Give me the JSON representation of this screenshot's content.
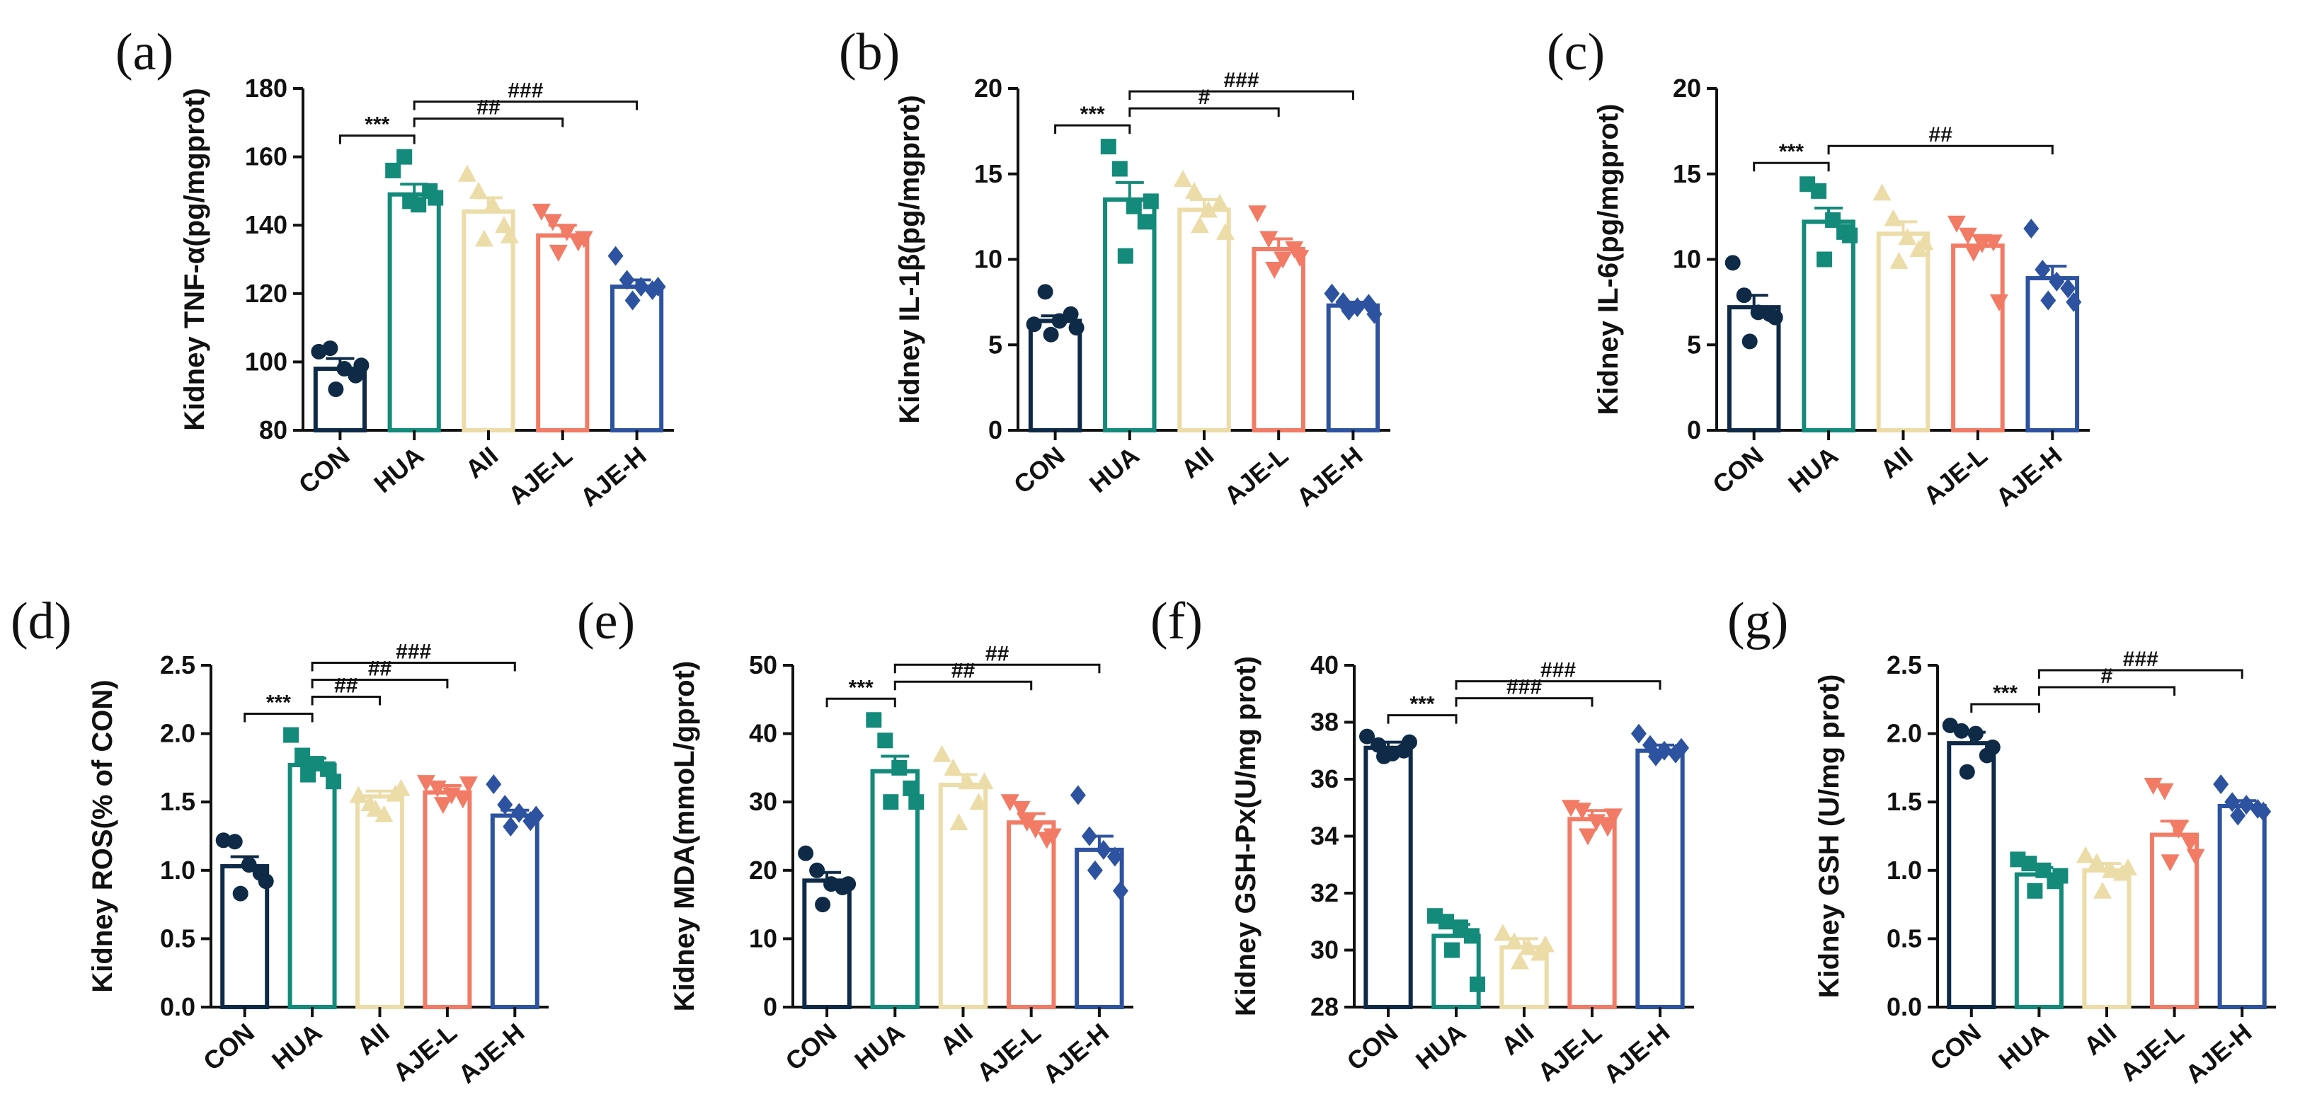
{
  "colors": {
    "CON": "#0e2a47",
    "HUA": "#138a7a",
    "AII": "#ecdca8",
    "AJE-L": "#f27b66",
    "AJE-H": "#2d53a0",
    "axis": "#111111"
  },
  "chart_data": [
    {
      "id": "a",
      "panel_label": "(a)",
      "type": "bar",
      "ylabel": "Kidney TNF-α(pg/mgprot)",
      "ylim": [
        80,
        180
      ],
      "yticks": [
        80,
        100,
        120,
        140,
        160,
        180
      ],
      "categories": [
        "CON",
        "HUA",
        "AII",
        "AJE-L",
        "AJE-H"
      ],
      "series": [
        {
          "name": "mean",
          "values": [
            98,
            149,
            144,
            137,
            122
          ]
        }
      ],
      "error_sem": [
        3,
        3,
        4,
        3,
        2
      ],
      "points": [
        [
          103,
          104,
          98,
          96,
          92,
          99
        ],
        [
          156,
          160,
          146,
          150,
          147,
          148
        ],
        [
          155,
          150,
          146,
          140,
          136,
          137
        ],
        [
          144,
          141,
          138,
          135,
          132,
          136
        ],
        [
          131,
          124,
          122,
          121,
          118,
          122
        ]
      ],
      "markers": [
        "circle",
        "square",
        "triangle",
        "triangle-down",
        "diamond"
      ],
      "comparisons": [
        {
          "from": 0,
          "to": 1,
          "label": "***"
        },
        {
          "from": 1,
          "to": 3,
          "label": "##"
        },
        {
          "from": 1,
          "to": 4,
          "label": "###"
        }
      ]
    },
    {
      "id": "b",
      "panel_label": "(b)",
      "type": "bar",
      "ylabel": "Kidney IL-1β(pg/mgprot)",
      "ylim": [
        0,
        20
      ],
      "yticks": [
        0,
        5,
        10,
        15,
        20
      ],
      "categories": [
        "CON",
        "HUA",
        "AII",
        "AJE-L",
        "AJE-H"
      ],
      "series": [
        {
          "name": "mean",
          "values": [
            6.4,
            13.5,
            12.9,
            10.6,
            7.3
          ]
        }
      ],
      "error_sem": [
        0.3,
        1.0,
        0.6,
        0.6,
        0.2
      ],
      "points": [
        [
          6.2,
          8.1,
          6.4,
          6.8,
          5.6,
          6.0
        ],
        [
          16.6,
          15.3,
          13.1,
          12.2,
          10.2,
          13.4
        ],
        [
          14.7,
          14.0,
          12.9,
          13.3,
          12.0,
          11.6
        ],
        [
          12.7,
          11.2,
          10.0,
          10.6,
          9.4,
          10.1
        ],
        [
          8.0,
          7.5,
          7.2,
          7.4,
          7.0,
          6.8
        ]
      ],
      "markers": [
        "circle",
        "square",
        "triangle",
        "triangle-down",
        "diamond"
      ],
      "comparisons": [
        {
          "from": 0,
          "to": 1,
          "label": "***"
        },
        {
          "from": 1,
          "to": 3,
          "label": "#"
        },
        {
          "from": 1,
          "to": 4,
          "label": "###"
        }
      ]
    },
    {
      "id": "c",
      "panel_label": "(c)",
      "type": "bar",
      "ylabel": "Kidney IL-6(pg/mgprot)",
      "ylim": [
        0,
        20
      ],
      "yticks": [
        0,
        5,
        10,
        15,
        20
      ],
      "categories": [
        "CON",
        "HUA",
        "AII",
        "AJE-L",
        "AJE-H"
      ],
      "series": [
        {
          "name": "mean",
          "values": [
            7.2,
            12.2,
            11.5,
            10.8,
            8.9
          ]
        }
      ],
      "error_sem": [
        0.7,
        0.8,
        0.7,
        0.6,
        0.7
      ],
      "points": [
        [
          9.8,
          7.9,
          6.9,
          6.8,
          5.2,
          6.6
        ],
        [
          14.4,
          14.0,
          12.3,
          11.6,
          10.0,
          11.4
        ],
        [
          13.9,
          12.4,
          11.3,
          10.6,
          9.9,
          11.0
        ],
        [
          12.1,
          11.4,
          10.9,
          11.0,
          10.4,
          7.5
        ],
        [
          11.8,
          9.4,
          8.7,
          8.3,
          7.6,
          7.5
        ]
      ],
      "markers": [
        "circle",
        "square",
        "triangle",
        "triangle-down",
        "diamond"
      ],
      "comparisons": [
        {
          "from": 0,
          "to": 1,
          "label": "***"
        },
        {
          "from": 1,
          "to": 4,
          "label": "##"
        }
      ]
    },
    {
      "id": "d",
      "panel_label": "(d)",
      "type": "bar",
      "ylabel": "Kidney ROS(% of CON)",
      "ylim": [
        0,
        2.5
      ],
      "yticks": [
        "0.0",
        "0.5",
        "1.0",
        "1.5",
        "2.0",
        "2.5"
      ],
      "categories": [
        "CON",
        "HUA",
        "AII",
        "AJE-L",
        "AJE-H"
      ],
      "series": [
        {
          "name": "mean",
          "values": [
            1.03,
            1.77,
            1.54,
            1.57,
            1.4
          ]
        }
      ],
      "error_sem": [
        0.07,
        0.05,
        0.04,
        0.05,
        0.04
      ],
      "points": [
        [
          1.22,
          1.21,
          1.04,
          0.98,
          0.83,
          0.92
        ],
        [
          1.99,
          1.84,
          1.78,
          1.74,
          1.7,
          1.65
        ],
        [
          1.55,
          1.49,
          1.41,
          1.56,
          1.45,
          1.6
        ],
        [
          1.64,
          1.6,
          1.55,
          1.52,
          1.48,
          1.63
        ],
        [
          1.63,
          1.48,
          1.42,
          1.36,
          1.32,
          1.4
        ]
      ],
      "markers": [
        "circle",
        "square",
        "triangle",
        "triangle-down",
        "diamond"
      ],
      "comparisons": [
        {
          "from": 0,
          "to": 1,
          "label": "***"
        },
        {
          "from": 1,
          "to": 2,
          "label": "##"
        },
        {
          "from": 1,
          "to": 3,
          "label": "##"
        },
        {
          "from": 1,
          "to": 4,
          "label": "###"
        }
      ]
    },
    {
      "id": "e",
      "panel_label": "(e)",
      "type": "bar",
      "ylabel": "Kidney MDA(mmoL/gprot)",
      "ylim": [
        0,
        50
      ],
      "yticks": [
        0,
        10,
        20,
        30,
        40,
        50
      ],
      "categories": [
        "CON",
        "HUA",
        "AII",
        "AJE-L",
        "AJE-H"
      ],
      "series": [
        {
          "name": "mean",
          "values": [
            18.5,
            34.5,
            32.5,
            27.0,
            23.0
          ]
        }
      ],
      "error_sem": [
        1.2,
        2.2,
        1.5,
        1.3,
        2.0
      ],
      "points": [
        [
          22.5,
          20.0,
          18.0,
          17.5,
          15.0,
          18.0
        ],
        [
          42.0,
          39.0,
          35.0,
          32.0,
          30.0,
          30.0
        ],
        [
          37.0,
          35.0,
          33.0,
          30.0,
          27.0,
          33.0
        ],
        [
          30.0,
          29.0,
          26.0,
          24.5,
          27.0,
          25.0
        ],
        [
          31.0,
          25.0,
          23.0,
          22.0,
          20.0,
          17.0
        ]
      ],
      "markers": [
        "circle",
        "square",
        "triangle",
        "triangle-down",
        "diamond"
      ],
      "comparisons": [
        {
          "from": 0,
          "to": 1,
          "label": "***"
        },
        {
          "from": 1,
          "to": 3,
          "label": "##"
        },
        {
          "from": 1,
          "to": 4,
          "label": "##"
        }
      ]
    },
    {
      "id": "f",
      "panel_label": "(f)",
      "type": "bar",
      "ylabel": "Kidney GSH-Px(U/mg prot)",
      "ylim": [
        28,
        40
      ],
      "yticks": [
        28,
        30,
        32,
        34,
        36,
        38,
        40
      ],
      "categories": [
        "CON",
        "HUA",
        "AII",
        "AJE-L",
        "AJE-H"
      ],
      "series": [
        {
          "name": "mean",
          "values": [
            37.1,
            30.5,
            30.1,
            34.6,
            37.0
          ]
        }
      ],
      "error_sem": [
        0.2,
        0.4,
        0.3,
        0.3,
        0.2
      ],
      "points": [
        [
          37.5,
          37.2,
          36.9,
          37.0,
          36.8,
          37.3
        ],
        [
          31.2,
          31.0,
          30.8,
          30.5,
          30.0,
          28.8
        ],
        [
          30.6,
          30.3,
          30.1,
          29.9,
          29.6,
          30.2
        ],
        [
          35.0,
          34.9,
          34.5,
          34.3,
          34.0,
          34.7
        ],
        [
          37.6,
          37.2,
          37.0,
          36.9,
          36.8,
          37.1
        ]
      ],
      "markers": [
        "circle",
        "square",
        "triangle",
        "triangle-down",
        "diamond"
      ],
      "comparisons": [
        {
          "from": 0,
          "to": 1,
          "label": "***"
        },
        {
          "from": 1,
          "to": 3,
          "label": "###"
        },
        {
          "from": 1,
          "to": 4,
          "label": "###"
        }
      ]
    },
    {
      "id": "g",
      "panel_label": "(g)",
      "type": "bar",
      "ylabel": "Kidney GSH (U/mg prot)",
      "ylim": [
        0,
        2.5
      ],
      "yticks": [
        "0.0",
        "0.5",
        "1.0",
        "1.5",
        "2.0",
        "2.5"
      ],
      "categories": [
        "CON",
        "HUA",
        "AII",
        "AJE-L",
        "AJE-H"
      ],
      "series": [
        {
          "name": "mean",
          "values": [
            1.93,
            0.97,
            1.0,
            1.26,
            1.47
          ]
        }
      ],
      "error_sem": [
        0.08,
        0.05,
        0.05,
        0.1,
        0.04
      ],
      "points": [
        [
          2.06,
          2.02,
          2.0,
          1.84,
          1.72,
          1.9
        ],
        [
          1.08,
          1.05,
          1.0,
          0.92,
          0.85,
          0.96
        ],
        [
          1.11,
          1.06,
          1.0,
          0.98,
          0.85,
          1.02
        ],
        [
          1.62,
          1.58,
          1.3,
          1.2,
          1.06,
          1.1
        ],
        [
          1.63,
          1.5,
          1.48,
          1.45,
          1.4,
          1.43
        ]
      ],
      "markers": [
        "circle",
        "square",
        "triangle",
        "triangle-down",
        "diamond"
      ],
      "comparisons": [
        {
          "from": 0,
          "to": 1,
          "label": "***"
        },
        {
          "from": 1,
          "to": 3,
          "label": "#"
        },
        {
          "from": 1,
          "to": 4,
          "label": "###"
        }
      ]
    }
  ]
}
